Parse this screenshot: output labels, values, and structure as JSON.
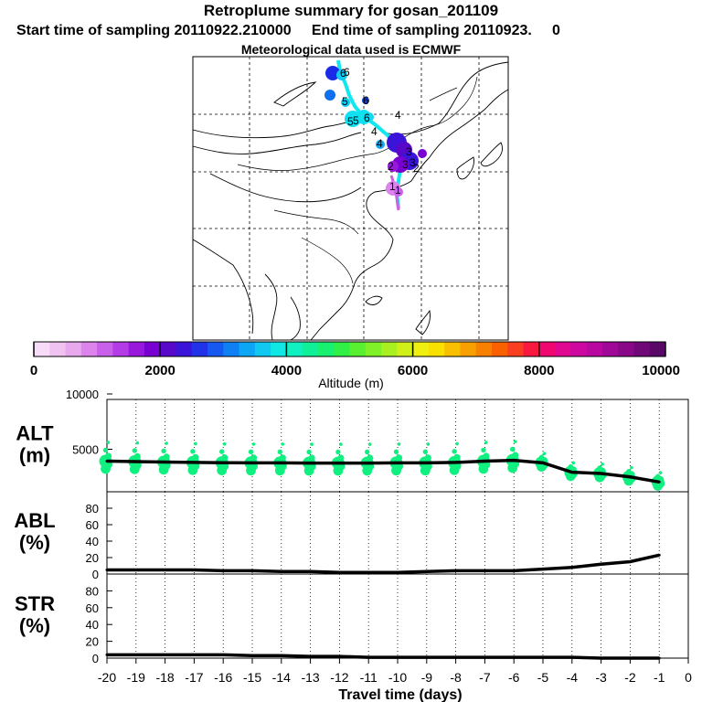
{
  "header": {
    "title": "Retroplume summary for gosan_201109",
    "subtitle": "Start time of sampling 20110922.210000     End time of sampling 20110923.     0",
    "met_data": "Meteorological data used is ECMWF"
  },
  "map": {
    "labels": [
      "6",
      "6",
      "5",
      "6",
      "5",
      "5",
      "6",
      "4",
      "4",
      "4",
      "3",
      "3",
      "3",
      "2",
      "2",
      "1",
      "1"
    ]
  },
  "colorbar": {
    "ticks": [
      "0",
      "2000",
      "4000",
      "6000",
      "8000",
      "10000"
    ],
    "label": "Altitude (m)",
    "colors": [
      "#f7dcf7",
      "#f0c2f0",
      "#e8a8ee",
      "#dc84ec",
      "#c860ea",
      "#b43ce6",
      "#9818dc",
      "#7800d2",
      "#5808c8",
      "#3a14d8",
      "#2232e8",
      "#1658f0",
      "#0e80f4",
      "#0ca6f4",
      "#10c8f0",
      "#10e8e6",
      "#10f0c0",
      "#10f098",
      "#18f070",
      "#30f048",
      "#58f030",
      "#80f028",
      "#a8f020",
      "#d0f018",
      "#f0f010",
      "#f8e000",
      "#f8c000",
      "#f8a000",
      "#f88000",
      "#f86000",
      "#f84020",
      "#f81840",
      "#f00870",
      "#e00890",
      "#cc08a0",
      "#b808a0",
      "#a00898",
      "#880888",
      "#700878",
      "#5a0868"
    ]
  },
  "chart_data": [
    {
      "type": "line",
      "name": "ALT",
      "title": "ALT",
      "ylabel": "(m)",
      "x": [
        -20,
        -19,
        -18,
        -17,
        -16,
        -15,
        -14,
        -13,
        -12,
        -11,
        -10,
        -9,
        -8,
        -7,
        -6,
        -5,
        -4,
        -3,
        -2,
        -1
      ],
      "values": [
        3600,
        3550,
        3500,
        3450,
        3420,
        3400,
        3400,
        3380,
        3380,
        3380,
        3400,
        3400,
        3450,
        3600,
        3700,
        3400,
        2300,
        2150,
        1750,
        1150
      ],
      "ylim": [
        0,
        10000
      ],
      "yticks": [
        "10000",
        "5000"
      ]
    },
    {
      "type": "line",
      "name": "ABL",
      "title": "ABL",
      "ylabel": "(%)",
      "x": [
        -20,
        -19,
        -18,
        -17,
        -16,
        -15,
        -14,
        -13,
        -12,
        -11,
        -10,
        -9,
        -8,
        -7,
        -6,
        -5,
        -4,
        -3,
        -2,
        -1
      ],
      "values": [
        5,
        5,
        5,
        5,
        4,
        4,
        3,
        3,
        2,
        2,
        2,
        3,
        4,
        4,
        4,
        6,
        8,
        12,
        15,
        23
      ],
      "ylim": [
        0,
        100
      ],
      "yticks": [
        "80",
        "60",
        "40",
        "20",
        "0"
      ]
    },
    {
      "type": "line",
      "name": "STR",
      "title": "STR",
      "ylabel": "(%)",
      "x": [
        -20,
        -19,
        -18,
        -17,
        -16,
        -15,
        -14,
        -13,
        -12,
        -11,
        -10,
        -9,
        -8,
        -7,
        -6,
        -5,
        -4,
        -3,
        -2,
        -1
      ],
      "values": [
        4,
        4,
        4,
        4,
        4,
        3,
        3,
        2,
        2,
        1,
        1,
        1,
        1,
        1,
        1,
        1,
        1,
        0,
        0,
        0
      ],
      "ylim": [
        0,
        100
      ],
      "yticks": [
        "80",
        "60",
        "40",
        "20",
        "0"
      ]
    }
  ],
  "x_axis": {
    "ticks": [
      "-20",
      "-19",
      "-18",
      "-17",
      "-16",
      "-15",
      "-14",
      "-13",
      "-12",
      "-11",
      "-10",
      "-9",
      "-8",
      "-7",
      "-6",
      "-5",
      "-4",
      "-3",
      "-2",
      "-1",
      "0"
    ],
    "label": "Travel time (days)"
  },
  "colors": {
    "line": "#000000",
    "dots": "#10f080",
    "plume": "#10e8f0"
  }
}
